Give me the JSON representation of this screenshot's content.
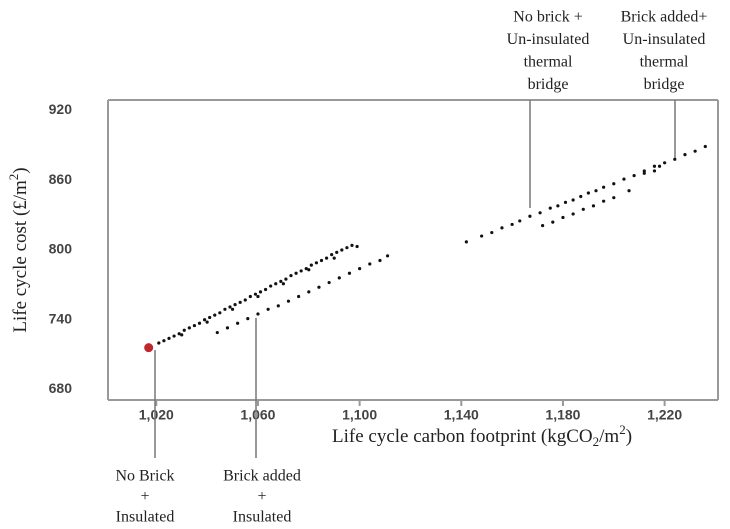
{
  "chart_data": {
    "type": "scatter",
    "x_label_parts": [
      "Life cycle carbon footprint (kgCO",
      "2",
      "/m",
      "2",
      ")"
    ],
    "y_label_parts": [
      "Life cycle cost (£/m",
      "2",
      ")"
    ],
    "xlim": [
      1001,
      1241
    ],
    "ylim": [
      671,
      929
    ],
    "xticks": [
      {
        "value": 1020,
        "label": "1,020"
      },
      {
        "value": 1060,
        "label": "1,060"
      },
      {
        "value": 1100,
        "label": "1,100"
      },
      {
        "value": 1140,
        "label": "1,140"
      },
      {
        "value": 1180,
        "label": "1,180"
      },
      {
        "value": 1220,
        "label": "1,220"
      }
    ],
    "yticks": [
      680,
      740,
      800,
      860,
      920
    ],
    "series": [
      {
        "color": "#111111",
        "x": [
          1021,
          1023,
          1025,
          1027,
          1029,
          1031,
          1033,
          1035,
          1037,
          1039,
          1041,
          1043,
          1045,
          1047,
          1049,
          1051,
          1053,
          1055,
          1057,
          1059,
          1061,
          1063,
          1065,
          1067,
          1069,
          1071,
          1073,
          1075,
          1077,
          1079,
          1081,
          1083,
          1085,
          1087,
          1089,
          1091,
          1093,
          1095,
          1097,
          1099,
          1030,
          1040,
          1050,
          1060,
          1070,
          1080,
          1090,
          1044,
          1048,
          1052,
          1056,
          1060,
          1064,
          1068,
          1072,
          1076,
          1080,
          1084,
          1088,
          1092,
          1096,
          1100,
          1104,
          1108,
          1111,
          1142,
          1148,
          1152,
          1156,
          1160,
          1163,
          1167,
          1171,
          1175,
          1178,
          1181,
          1184,
          1187,
          1190,
          1193,
          1196,
          1200,
          1204,
          1208,
          1212,
          1216,
          1220,
          1224,
          1228,
          1232,
          1236,
          1172,
          1176,
          1180,
          1184,
          1188,
          1192,
          1196,
          1200,
          1206,
          1212,
          1216,
          1218
        ],
        "y": [
          720,
          722,
          724,
          726,
          728,
          731,
          733,
          735,
          737,
          740,
          742,
          744,
          746,
          749,
          751,
          753,
          755,
          757,
          760,
          762,
          764,
          766,
          769,
          771,
          773,
          775,
          778,
          780,
          782,
          784,
          787,
          789,
          791,
          793,
          796,
          798,
          800,
          802,
          804,
          803,
          727,
          738,
          749,
          760,
          771,
          783,
          793,
          729,
          733,
          737,
          741,
          745,
          749,
          752,
          756,
          760,
          764,
          768,
          772,
          776,
          780,
          784,
          788,
          791,
          795,
          807,
          812,
          815,
          819,
          822,
          825,
          829,
          832,
          836,
          838,
          841,
          843,
          846,
          849,
          851,
          854,
          857,
          861,
          864,
          868,
          872,
          875,
          878,
          882,
          885,
          889,
          821,
          824,
          828,
          831,
          835,
          838,
          842,
          845,
          851,
          866,
          868,
          872
        ]
      },
      {
        "color": "#c0272d",
        "x": [
          1017
        ],
        "y": [
          716
        ]
      }
    ],
    "annotations": [
      {
        "lines": [
          "No brick +",
          "Un-insulated",
          "thermal",
          "bridge"
        ]
      },
      {
        "lines": [
          "Brick added+",
          "Un-insulated",
          "thermal",
          "bridge"
        ]
      },
      {
        "lines": [
          "No Brick",
          "+",
          "Insulated"
        ]
      },
      {
        "lines": [
          "Brick added",
          "+",
          "Insulated"
        ]
      }
    ]
  }
}
